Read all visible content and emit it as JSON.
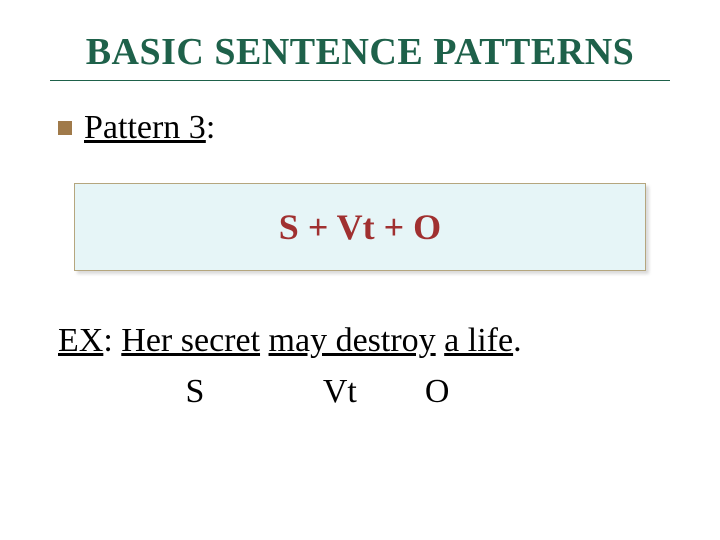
{
  "title": "BASIC SENTENCE PATTERNS",
  "pattern": {
    "label_u": "Pattern 3",
    "label_rest": ":"
  },
  "formula": "S + Vt + O",
  "example": {
    "prefix": "EX",
    "seg1": "Her secret",
    "seg2": "may destroy",
    "seg3": "a life",
    "tail": "."
  },
  "labels": {
    "s": "S",
    "vt": "Vt",
    "o": "O"
  },
  "colors": {
    "title": "#1e614a",
    "bullet": "#a07a4a",
    "formula_bg": "#e6f5f7",
    "formula_border": "#b5a67e",
    "formula_text": "#a03030",
    "body_text": "#000000",
    "background": "#ffffff"
  },
  "fonts": {
    "family": "Georgia, Times New Roman, serif",
    "title_size_pt": 29,
    "body_size_pt": 26,
    "formula_size_pt": 27
  }
}
